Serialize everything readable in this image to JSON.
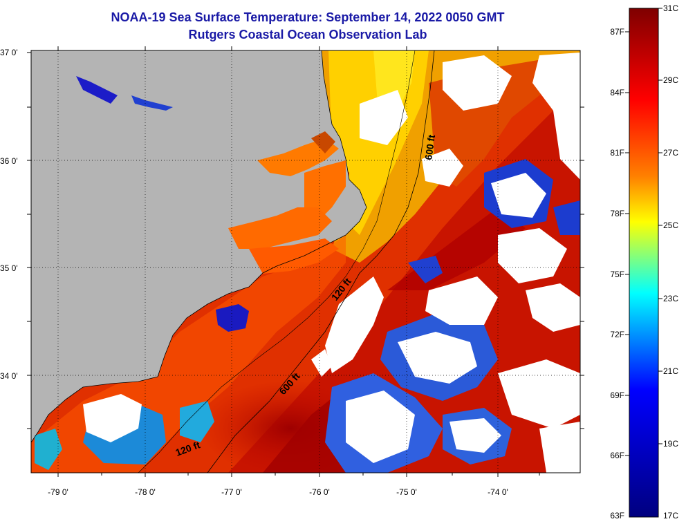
{
  "header": {
    "title": "NOAA-19 Sea Surface Temperature:  September 14, 2022 0050 GMT",
    "subtitle": "Rutgers Coastal Ocean Observation Lab"
  },
  "map": {
    "lon_labels": [
      "-79 0'",
      "-78 0'",
      "-77 0'",
      "-76 0'",
      "-75 0'",
      "-74 0'"
    ],
    "lat_labels": [
      "37 0'",
      "36 0'",
      "35 0'",
      "34 0'"
    ],
    "isobath_labels": [
      "600 ft",
      "120 ft",
      "600 ft",
      "120 ft"
    ],
    "colors": {
      "land": "#b4b4b4",
      "cloud": "#ffffff",
      "coast": "#000000"
    }
  },
  "colorbar": {
    "fahrenheit_labels": [
      "87F",
      "84F",
      "81F",
      "78F",
      "75F",
      "72F",
      "69F",
      "66F",
      "63F"
    ],
    "celsius_labels": [
      "31C",
      "29C",
      "27C",
      "25C",
      "23C",
      "21C",
      "19C",
      "17C"
    ],
    "colors": [
      "#7f0000",
      "#ff0000",
      "#ff8000",
      "#ffff00",
      "#00ffff",
      "#0000ff",
      "#00007f"
    ]
  }
}
